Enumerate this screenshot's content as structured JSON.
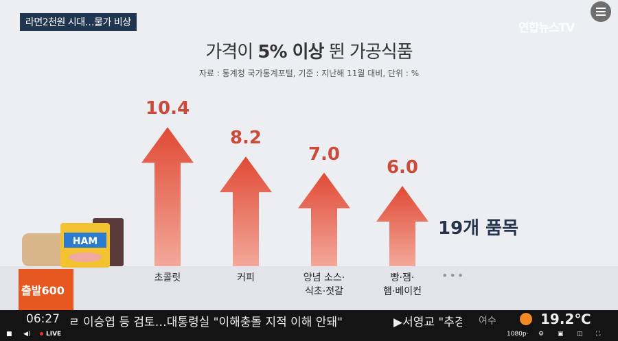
{
  "caption": "라면2천원 시대…물가 비상",
  "logo": "연합뉴스TV",
  "chart_data": {
    "type": "bar",
    "title_pre": "가격이 ",
    "title_bold": "5% 이상",
    "title_post": " 뛴 가공식품",
    "subtitle": "자료 : 통계청 국가통계포털, 기준 : 지난해 11월 대비, 단위 : %",
    "categories": [
      [
        "초콜릿",
        ""
      ],
      [
        "커피",
        ""
      ],
      [
        "양념 소스·",
        "식초·젓갈"
      ],
      [
        "빵·잼·",
        "햄·베이컨"
      ]
    ],
    "values": [
      10.4,
      8.2,
      7.0,
      6.0
    ],
    "labels": [
      "10.4",
      "8.2",
      "7.0",
      "6.0"
    ],
    "ylim": [
      0,
      11
    ],
    "annotation": "19개 품목",
    "more": "•••",
    "color": "#e04a35"
  },
  "brand": "출발600",
  "ticker": {
    "time": "06:27",
    "headline": "ㄹ 이승엽 등 검토…대통령실 \"이해충돌 지적 이해 안돼\"",
    "headline2": "▶서영교 \"추경",
    "city": "여수",
    "temp": "19.2℃"
  },
  "player": {
    "live": "LIVE",
    "quality": "1080p·"
  }
}
